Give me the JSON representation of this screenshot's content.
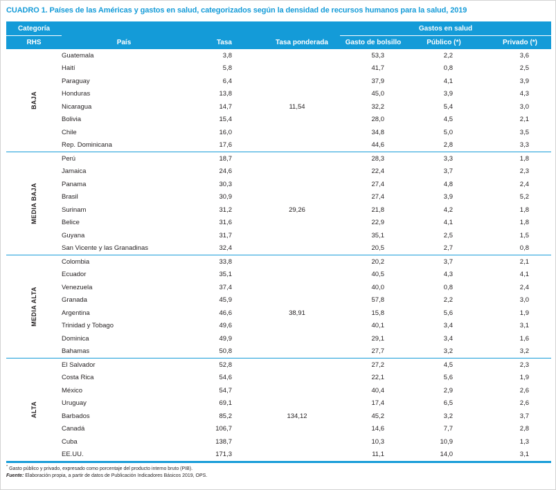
{
  "title": "CUADRO 1. Países de las Américas y gastos en salud, categorizados según la densidad de recursos humanos para la salud, 2019",
  "colors": {
    "accent_blue": "#149BD8"
  },
  "table": {
    "header": {
      "categoria": "Categoría",
      "rhs": "RHS",
      "pais": "País",
      "tasa": "Tasa",
      "tasa_ponderada": "Tasa ponderada",
      "gastos_en_salud": "Gastos en salud",
      "gasto_bolsillo": "Gasto de bolsillo",
      "publico": "Público (*)",
      "privado": "Privado (*)"
    },
    "sections": [
      {
        "category": "BAJA",
        "tasa_ponderada": "11,54",
        "tasa_ponderada_row": 4,
        "rows": [
          {
            "pais": "Guatemala",
            "tasa": "3,8",
            "bolsillo": "53,3",
            "publico": "2,2",
            "privado": "3,6"
          },
          {
            "pais": "Haití",
            "tasa": "5,8",
            "bolsillo": "41,7",
            "publico": "0,8",
            "privado": "2,5"
          },
          {
            "pais": "Paraguay",
            "tasa": "6,4",
            "bolsillo": "37,9",
            "publico": "4,1",
            "privado": "3,9"
          },
          {
            "pais": "Honduras",
            "tasa": "13,8",
            "bolsillo": "45,0",
            "publico": "3,9",
            "privado": "4,3"
          },
          {
            "pais": "Nicaragua",
            "tasa": "14,7",
            "bolsillo": "32,2",
            "publico": "5,4",
            "privado": "3,0"
          },
          {
            "pais": "Bolivia",
            "tasa": "15,4",
            "bolsillo": "28,0",
            "publico": "4,5",
            "privado": "2,1"
          },
          {
            "pais": "Chile",
            "tasa": "16,0",
            "bolsillo": "34,8",
            "publico": "5,0",
            "privado": "3,5"
          },
          {
            "pais": "Rep. Dominicana",
            "tasa": "17,6",
            "bolsillo": "44,6",
            "publico": "2,8",
            "privado": "3,3"
          }
        ]
      },
      {
        "category": "MEDIA BAJA",
        "tasa_ponderada": "29,26",
        "tasa_ponderada_row": 4,
        "rows": [
          {
            "pais": "Perú",
            "tasa": "18,7",
            "bolsillo": "28,3",
            "publico": "3,3",
            "privado": "1,8"
          },
          {
            "pais": "Jamaica",
            "tasa": "24,6",
            "bolsillo": "22,4",
            "publico": "3,7",
            "privado": "2,3"
          },
          {
            "pais": "Panama",
            "tasa": "30,3",
            "bolsillo": "27,4",
            "publico": "4,8",
            "privado": "2,4"
          },
          {
            "pais": "Brasil",
            "tasa": "30,9",
            "bolsillo": "27,4",
            "publico": "3,9",
            "privado": "5,2"
          },
          {
            "pais": "Surinam",
            "tasa": "31,2",
            "bolsillo": "21,8",
            "publico": "4,2",
            "privado": "1,8"
          },
          {
            "pais": "Belice",
            "tasa": "31,6",
            "bolsillo": "22,9",
            "publico": "4,1",
            "privado": "1,8"
          },
          {
            "pais": "Guyana",
            "tasa": "31,7",
            "bolsillo": "35,1",
            "publico": "2,5",
            "privado": "1,5"
          },
          {
            "pais": "San Vicente y las Granadinas",
            "tasa": "32,4",
            "bolsillo": "20,5",
            "publico": "2,7",
            "privado": "0,8"
          }
        ]
      },
      {
        "category": "MEDIA ALTA",
        "tasa_ponderada": "38,91",
        "tasa_ponderada_row": 4,
        "rows": [
          {
            "pais": "Colombia",
            "tasa": "33,8",
            "bolsillo": "20,2",
            "publico": "3,7",
            "privado": "2,1"
          },
          {
            "pais": "Ecuador",
            "tasa": "35,1",
            "bolsillo": "40,5",
            "publico": "4,3",
            "privado": "4,1"
          },
          {
            "pais": "Venezuela",
            "tasa": "37,4",
            "bolsillo": "40,0",
            "publico": "0,8",
            "privado": "2,4"
          },
          {
            "pais": "Granada",
            "tasa": "45,9",
            "bolsillo": "57,8",
            "publico": "2,2",
            "privado": "3,0"
          },
          {
            "pais": "Argentina",
            "tasa": "46,6",
            "bolsillo": "15,8",
            "publico": "5,6",
            "privado": "1,9"
          },
          {
            "pais": "Trinidad y Tobago",
            "tasa": "49,6",
            "bolsillo": "40,1",
            "publico": "3,4",
            "privado": "3,1"
          },
          {
            "pais": "Dominica",
            "tasa": "49,9",
            "bolsillo": "29,1",
            "publico": "3,4",
            "privado": "1,6"
          },
          {
            "pais": "Bahamas",
            "tasa": "50,8",
            "bolsillo": "27,7",
            "publico": "3,2",
            "privado": "3,2"
          }
        ]
      },
      {
        "category": "ALTA",
        "tasa_ponderada": "134,12",
        "tasa_ponderada_row": 4,
        "rows": [
          {
            "pais": "El Salvador",
            "tasa": "52,8",
            "bolsillo": "27,2",
            "publico": "4,5",
            "privado": "2,3"
          },
          {
            "pais": "Costa Rica",
            "tasa": "54,6",
            "bolsillo": "22,1",
            "publico": "5,6",
            "privado": "1,9"
          },
          {
            "pais": "México",
            "tasa": "54,7",
            "bolsillo": "40,4",
            "publico": "2,9",
            "privado": "2,6"
          },
          {
            "pais": "Uruguay",
            "tasa": "69,1",
            "bolsillo": "17,4",
            "publico": "6,5",
            "privado": "2,6"
          },
          {
            "pais": "Barbados",
            "tasa": "85,2",
            "bolsillo": "45,2",
            "publico": "3,2",
            "privado": "3,7"
          },
          {
            "pais": "Canadá",
            "tasa": "106,7",
            "bolsillo": "14,6",
            "publico": "7,7",
            "privado": "2,8"
          },
          {
            "pais": "Cuba",
            "tasa": "138,7",
            "bolsillo": "10,3",
            "publico": "10,9",
            "privado": "1,3"
          },
          {
            "pais": "EE.UU.",
            "tasa": "171,3",
            "bolsillo": "11,1",
            "publico": "14,0",
            "privado": "3,1"
          }
        ]
      }
    ]
  },
  "footnotes": {
    "note_marker": "*",
    "note": " Gasto público y privado, expresado como porcentaje del producto interno bruto (PIB).",
    "fuente_label": "Fuente:",
    "fuente": " Elaboración propia, a partir de datos de Publicación Indicadores Básicos 2019, OPS."
  }
}
